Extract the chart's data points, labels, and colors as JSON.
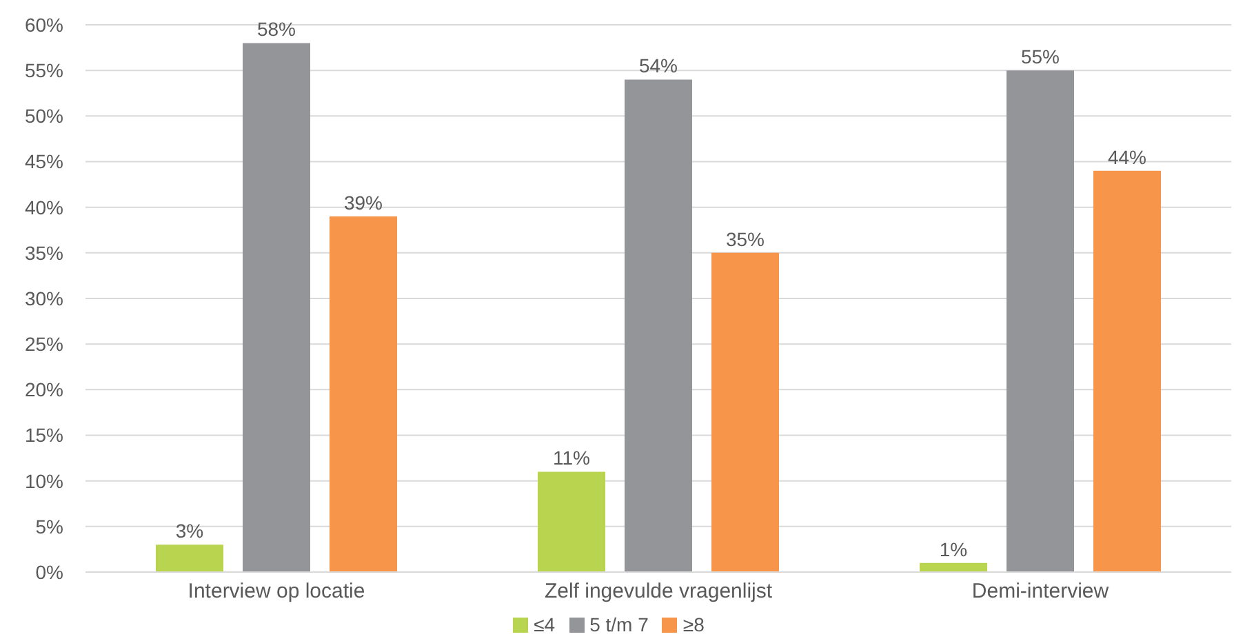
{
  "chart_data": {
    "type": "bar",
    "categories": [
      "Interview op locatie",
      "Zelf ingevulde vragenlijst",
      "Demi-interview"
    ],
    "series": [
      {
        "name": "≤4",
        "color": "#b9d54f",
        "values": [
          3,
          11,
          1
        ],
        "value_labels": [
          "3%",
          "11%",
          "1%"
        ]
      },
      {
        "name": "5 t/m 7",
        "color": "#939598",
        "values": [
          58,
          54,
          55
        ],
        "value_labels": [
          "58%",
          "54%",
          "55%"
        ]
      },
      {
        "name": "≥8",
        "color": "#f7964b",
        "values": [
          39,
          35,
          44
        ],
        "value_labels": [
          "39%",
          "35%",
          "44%"
        ]
      }
    ],
    "ylim": [
      0,
      60
    ],
    "yticks": [
      {
        "value": 0,
        "label": "0%"
      },
      {
        "value": 5,
        "label": "5%"
      },
      {
        "value": 10,
        "label": "10%"
      },
      {
        "value": 15,
        "label": "15%"
      },
      {
        "value": 20,
        "label": "20%"
      },
      {
        "value": 25,
        "label": "25%"
      },
      {
        "value": 30,
        "label": "30%"
      },
      {
        "value": 35,
        "label": "35%"
      },
      {
        "value": 40,
        "label": "40%"
      },
      {
        "value": 45,
        "label": "45%"
      },
      {
        "value": 50,
        "label": "50%"
      },
      {
        "value": 55,
        "label": "55%"
      },
      {
        "value": 60,
        "label": "60%"
      }
    ],
    "grid": "y",
    "legend": "bottom"
  }
}
